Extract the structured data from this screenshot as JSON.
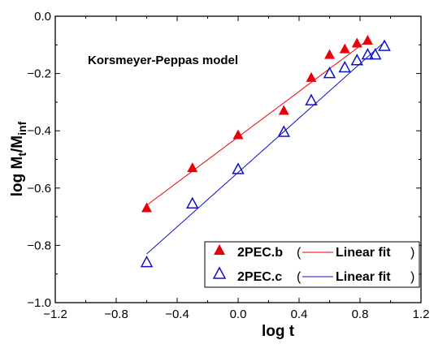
{
  "chart_data": {
    "type": "scatter",
    "annotation": "Korsmeyer-Peppas model",
    "xlabel": "log t",
    "ylabel": {
      "main": "log M",
      "sub1": "t",
      "mid": "/M",
      "sub2": "inf"
    },
    "xlim": [
      -1.2,
      1.2
    ],
    "ylim": [
      -1.0,
      0.0
    ],
    "xticks": [
      -1.2,
      -0.8,
      -0.4,
      0.0,
      0.4,
      0.8,
      1.2
    ],
    "xtick_labels": [
      "−1.2",
      "−0.8",
      "−0.4",
      "0.0",
      "0.4",
      "0.8",
      "1.2"
    ],
    "yticks": [
      0.0,
      -0.2,
      -0.4,
      -0.6,
      -0.8,
      -1.0
    ],
    "ytick_labels": [
      "0.0",
      "−0.2",
      "−0.4",
      "−0.6",
      "−0.8",
      "−1.0"
    ],
    "legend_position": "bottom-right",
    "fit_label": "Linear fit",
    "series": [
      {
        "name": "2PEC.b",
        "marker": "filled-triangle",
        "color": "#e8000b",
        "x": [
          -0.6,
          -0.3,
          0.0,
          0.3,
          0.48,
          0.6,
          0.7,
          0.78,
          0.85
        ],
        "y": [
          -0.67,
          -0.53,
          -0.415,
          -0.33,
          -0.215,
          -0.135,
          -0.115,
          -0.095,
          -0.085
        ],
        "fit": {
          "x": [
            -0.6,
            0.86
          ],
          "y": [
            -0.66,
            -0.08
          ]
        }
      },
      {
        "name": "2PEC.c",
        "marker": "open-triangle",
        "color": "#1010cc",
        "x": [
          -0.6,
          -0.3,
          0.0,
          0.3,
          0.48,
          0.6,
          0.7,
          0.78,
          0.85,
          0.9,
          0.96
        ],
        "y": [
          -0.86,
          -0.655,
          -0.535,
          -0.405,
          -0.295,
          -0.2,
          -0.18,
          -0.155,
          -0.135,
          -0.135,
          -0.105
        ],
        "fit": {
          "x": [
            -0.6,
            0.96
          ],
          "y": [
            -0.83,
            -0.09
          ]
        }
      }
    ]
  }
}
